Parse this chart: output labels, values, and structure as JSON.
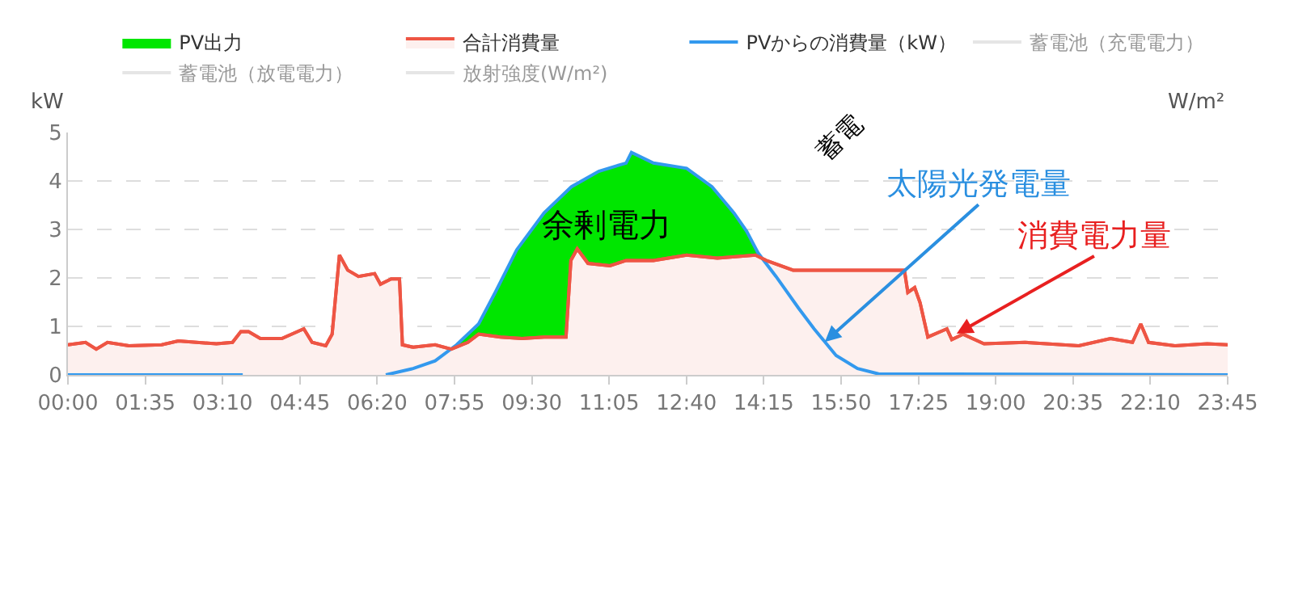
{
  "chart_data": {
    "type": "area",
    "ylabel": "kW",
    "y2label": "W/m²",
    "xlim": [
      0,
      23.75
    ],
    "xticks": [
      {
        "value": 0,
        "label": "00:00"
      },
      {
        "value": 1.5833,
        "label": "01:35"
      },
      {
        "value": 3.1667,
        "label": "03:10"
      },
      {
        "value": 4.75,
        "label": "04:45"
      },
      {
        "value": 6.3333,
        "label": "06:20"
      },
      {
        "value": 7.9167,
        "label": "07:55"
      },
      {
        "value": 9.5,
        "label": "09:30"
      },
      {
        "value": 11.0833,
        "label": "11:05"
      },
      {
        "value": 12.6667,
        "label": "12:40"
      },
      {
        "value": 14.25,
        "label": "14:15"
      },
      {
        "value": 15.8333,
        "label": "15:50"
      },
      {
        "value": 17.4167,
        "label": "17:25"
      },
      {
        "value": 19,
        "label": "19:00"
      },
      {
        "value": 20.5833,
        "label": "20:35"
      },
      {
        "value": 22.1667,
        "label": "22:10"
      },
      {
        "value": 23.75,
        "label": "23:45"
      }
    ],
    "ylim": [
      0,
      5
    ],
    "yticks": [
      0,
      1,
      2,
      3,
      4,
      5
    ],
    "grid": "y",
    "legend": "top",
    "marker": "none",
    "line_style": "solid",
    "series": [
      {
        "name": "PV出力",
        "color": "#00e600",
        "x": [
          7.96,
          8.41,
          8.75,
          9.19,
          9.75,
          10.31,
          10.87,
          11.43,
          11.54,
          11.99,
          12.67,
          13.19,
          13.64,
          13.9,
          14.13
        ],
        "values": [
          0.62,
          1.05,
          1.7,
          2.58,
          3.34,
          3.88,
          4.2,
          4.37,
          4.59,
          4.37,
          4.26,
          3.88,
          3.34,
          2.96,
          2.52
        ]
      },
      {
        "name": "合計消費量",
        "color": "#ee5544",
        "x": [
          0,
          0.36,
          0.58,
          0.81,
          1.25,
          1.92,
          2.26,
          3.04,
          3.37,
          3.54,
          3.7,
          3.94,
          4.38,
          4.83,
          5.0,
          5.28,
          5.41,
          5.56,
          5.73,
          5.95,
          6.28,
          6.4,
          6.62,
          6.79,
          6.85,
          7.07,
          7.52,
          7.85,
          8.19,
          8.41,
          8.86,
          9.3,
          9.75,
          10.2,
          10.3,
          10.43,
          10.65,
          11.1,
          11.43,
          11.99,
          12.67,
          13.3,
          14.08,
          14.3,
          14.85,
          15.6,
          16.4,
          17.13,
          17.2,
          17.34,
          17.45,
          17.61,
          18.0,
          18.1,
          18.33,
          18.76,
          19.6,
          20.7,
          21.35,
          21.8,
          21.97,
          22.13,
          22.67,
          23.33,
          23.75
        ],
        "values": [
          0.62,
          0.67,
          0.53,
          0.67,
          0.6,
          0.62,
          0.7,
          0.64,
          0.67,
          0.89,
          0.89,
          0.75,
          0.75,
          0.95,
          0.67,
          0.6,
          0.84,
          2.47,
          2.16,
          2.03,
          2.09,
          1.87,
          1.98,
          1.98,
          0.62,
          0.57,
          0.62,
          0.53,
          0.67,
          0.84,
          0.78,
          0.75,
          0.78,
          0.78,
          2.36,
          2.6,
          2.3,
          2.25,
          2.36,
          2.36,
          2.47,
          2.41,
          2.47,
          2.36,
          2.16,
          2.16,
          2.16,
          2.16,
          1.7,
          1.8,
          1.49,
          0.78,
          0.95,
          0.73,
          0.84,
          0.64,
          0.67,
          0.6,
          0.75,
          0.67,
          1.05,
          0.67,
          0.6,
          0.64,
          0.62
        ]
      },
      {
        "name": "PVからの消費量（kW）",
        "type": "line",
        "color": "#3399ee",
        "x": [
          0,
          3.58,
          5,
          6.51,
          7.07,
          7.52,
          7.96,
          8.41,
          8.75,
          9.19,
          9.75,
          10.31,
          10.87,
          11.43,
          11.54,
          11.99,
          12.67,
          13.19,
          13.64,
          13.9,
          14.13,
          14.5,
          14.96,
          15.28,
          15.73,
          16.17,
          16.6,
          23.75
        ],
        "values": [
          0,
          0,
          null,
          0,
          0.13,
          0.29,
          0.62,
          1.05,
          1.7,
          2.58,
          3.34,
          3.88,
          4.2,
          4.37,
          4.59,
          4.37,
          4.26,
          3.88,
          3.34,
          2.96,
          2.52,
          2.03,
          1.38,
          0.95,
          0.4,
          0.13,
          0.02,
          0
        ]
      },
      {
        "name": "蓄電池（充電電力）",
        "type": "line",
        "color": "#cccccc"
      },
      {
        "name": "蓄電池（放電電力）",
        "type": "line",
        "color": "#cccccc"
      },
      {
        "name": "放射強度(W/m²)",
        "type": "line",
        "color": "#cccccc"
      }
    ],
    "annotations": [
      "余剰電力",
      {
        "text": "太陽光発電量",
        "x": 15.5,
        "y": 0.68
      },
      {
        "text": "消費電力量",
        "x": 18.2,
        "y": 0.85
      },
      "蓄電"
    ]
  }
}
